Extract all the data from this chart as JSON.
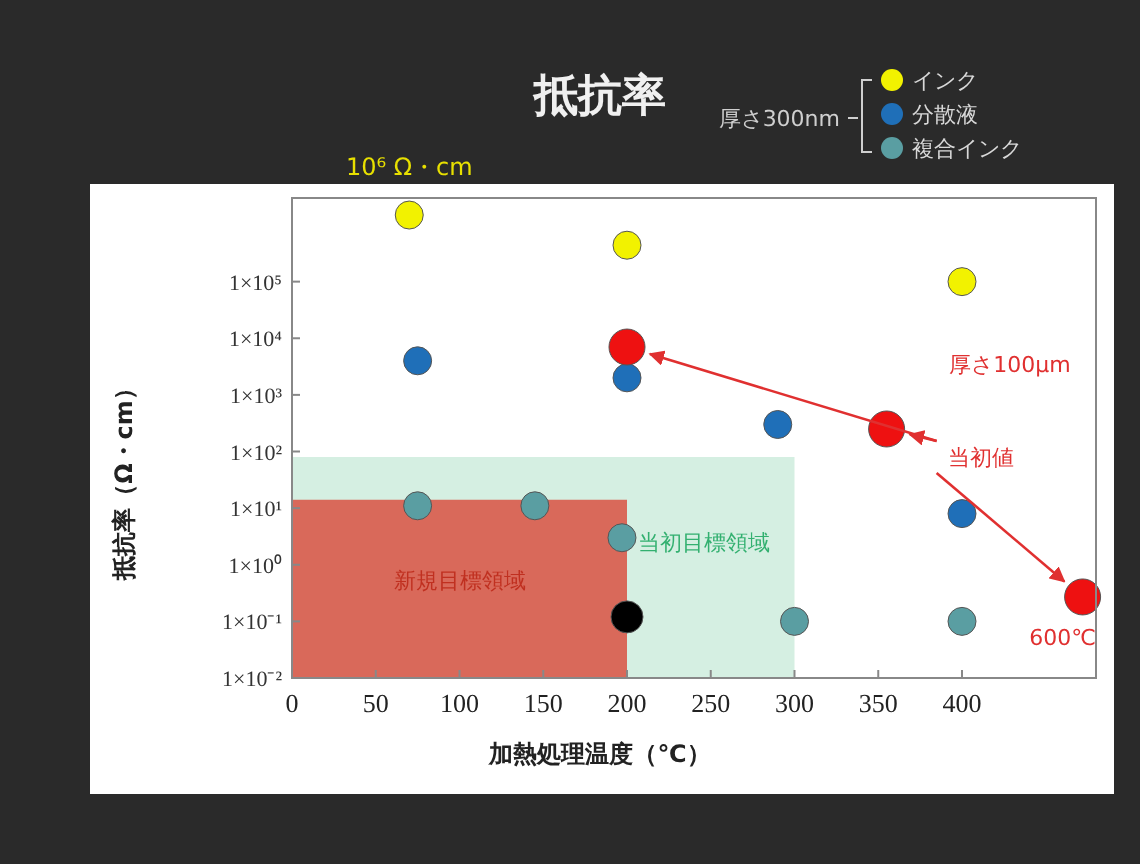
{
  "chart_data": {
    "type": "scatter",
    "title": "抵抗率",
    "xlabel": "加熱処理温度（℃）",
    "ylabel": "抵抗率（Ω・cm）",
    "legend_title": "厚さ300nm",
    "legend": "top right",
    "marker": "circle",
    "grid": false,
    "log": "y",
    "xlim": [
      0,
      480
    ],
    "xticks": [
      0,
      50,
      100,
      150,
      200,
      250,
      300,
      350,
      400
    ],
    "ylim": [
      0.01,
      3000000
    ],
    "yticks": [
      {
        "value": 0.01,
        "label": "1×10⁻²"
      },
      {
        "value": 0.1,
        "label": "1×10⁻¹"
      },
      {
        "value": 1,
        "label": "1×10⁰"
      },
      {
        "value": 10,
        "label": "1×10¹"
      },
      {
        "value": 100,
        "label": "1×10²"
      },
      {
        "value": 1000,
        "label": "1×10³"
      },
      {
        "value": 10000,
        "label": "1×10⁴"
      },
      {
        "value": 100000,
        "label": "1×10⁵"
      }
    ],
    "series": [
      {
        "type": "area",
        "marker": "none",
        "color": "#d5efe2",
        "x": [
          0,
          300
        ],
        "values": [
          80,
          80
        ]
      },
      {
        "type": "area",
        "marker": "none",
        "color": "#d9695a",
        "x": [
          0,
          200
        ],
        "values": [
          14,
          14
        ]
      },
      {
        "name": "インク",
        "color": "#f2f200",
        "x": [
          70,
          200,
          400
        ],
        "values": [
          1500000,
          440000,
          100000
        ]
      },
      {
        "name": "分散液",
        "color": "#1f6fb8",
        "x": [
          75,
          200,
          290,
          400
        ],
        "values": [
          4000,
          2000,
          300,
          8
        ]
      },
      {
        "name": "複合インク",
        "color": "#5a9ea2",
        "x": [
          75,
          145,
          197,
          300,
          400
        ],
        "values": [
          11,
          11,
          3,
          0.1,
          0.1
        ]
      },
      {
        "color": "#ee1111",
        "x": [
          200,
          355,
          472
        ],
        "values": [
          7000,
          250,
          0.27
        ]
      },
      {
        "color": "#000000",
        "x": [
          200
        ],
        "values": [
          0.12
        ]
      }
    ],
    "annotations": [
      {
        "text": "10⁶ Ω・cm",
        "x": 70,
        "y": 1500000
      },
      "厚さ100μm",
      {
        "text": "当初値",
        "x": 355,
        "y": 250
      },
      {
        "text": "600℃",
        "x": 472,
        "y": 0.27
      },
      "新規目標領域",
      "当初目標領域"
    ]
  }
}
